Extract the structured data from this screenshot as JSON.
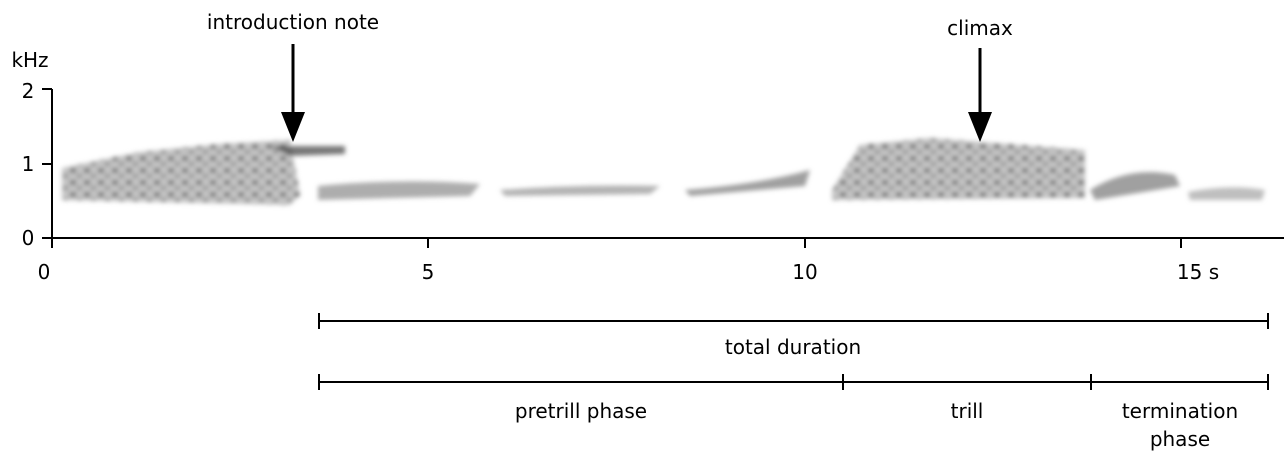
{
  "y_axis": {
    "unit": "kHz",
    "ticks": [
      "0",
      "1",
      "2"
    ]
  },
  "x_axis": {
    "ticks": [
      "0",
      "5",
      "10",
      "15 s"
    ]
  },
  "annotations": [
    "introduction note",
    "climax"
  ],
  "ranges": {
    "total": "total duration",
    "phases": [
      "pretrill phase",
      "trill",
      "termination phase"
    ]
  }
}
